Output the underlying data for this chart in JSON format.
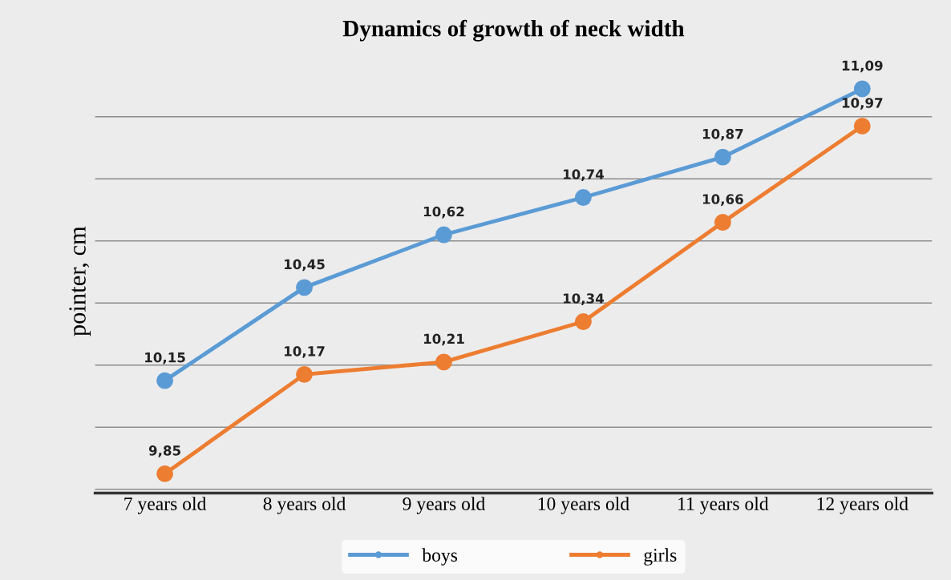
{
  "chart_data": {
    "type": "line",
    "title": "Dynamics of growth of neck width",
    "ylabel": "pointer, cm",
    "categories": [
      "7 years old",
      "8 years old",
      "9 years old",
      "10 years old",
      "11 years old",
      "12 years old"
    ],
    "series": [
      {
        "name": "boys",
        "color": "#5b9bd5",
        "values": [
          10.15,
          10.45,
          10.62,
          10.74,
          10.87,
          11.09
        ],
        "value_labels": [
          "10,15",
          "10,45",
          "10,62",
          "10,74",
          "10,87",
          "11,09"
        ]
      },
      {
        "name": "girls",
        "color": "#ed7d31",
        "values": [
          9.85,
          10.17,
          10.21,
          10.34,
          10.66,
          10.97
        ],
        "value_labels": [
          "9,85",
          "10,17",
          "10,21",
          "10,34",
          "10,66",
          "10,97"
        ]
      }
    ],
    "grid": "y",
    "legend": "bottom",
    "marker": "circle",
    "line_style": "solid"
  }
}
